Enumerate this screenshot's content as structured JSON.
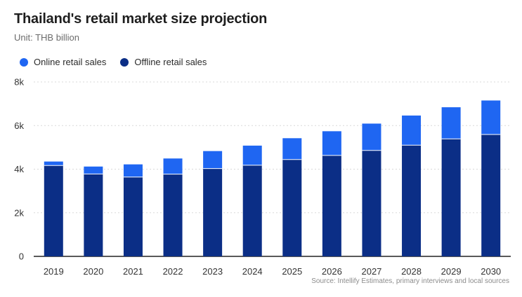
{
  "title": "Thailand's retail market size projection",
  "subtitle": "Unit: THB billion",
  "source": "Source: Intellify Estimates, primary interviews and local sources",
  "colors": {
    "online": "#1f66f2",
    "offline": "#0b2e86",
    "grid": "#d9d9d9",
    "axis": "#333333"
  },
  "chart_data": {
    "type": "bar",
    "stacked": true,
    "categories": [
      "2019",
      "2020",
      "2021",
      "2022",
      "2023",
      "2024",
      "2025",
      "2026",
      "2027",
      "2028",
      "2029",
      "2030"
    ],
    "series": [
      {
        "name": "Offline retail sales",
        "values": [
          4170,
          3780,
          3640,
          3770,
          4030,
          4180,
          4440,
          4630,
          4860,
          5100,
          5390,
          5590
        ]
      },
      {
        "name": "Online retail sales",
        "values": [
          180,
          340,
          580,
          720,
          800,
          900,
          980,
          1110,
          1230,
          1360,
          1450,
          1560
        ]
      }
    ],
    "ylim": [
      0,
      8000
    ],
    "yticks": [
      0,
      2000,
      4000,
      6000,
      8000
    ],
    "ytick_labels": [
      "0",
      "2k",
      "4k",
      "6k",
      "8k"
    ],
    "legend": [
      {
        "label": "Online retail sales",
        "color": "#1f66f2"
      },
      {
        "label": "Offline retail sales",
        "color": "#0b2e86"
      }
    ],
    "legend_position": "top-left",
    "grid": true
  }
}
